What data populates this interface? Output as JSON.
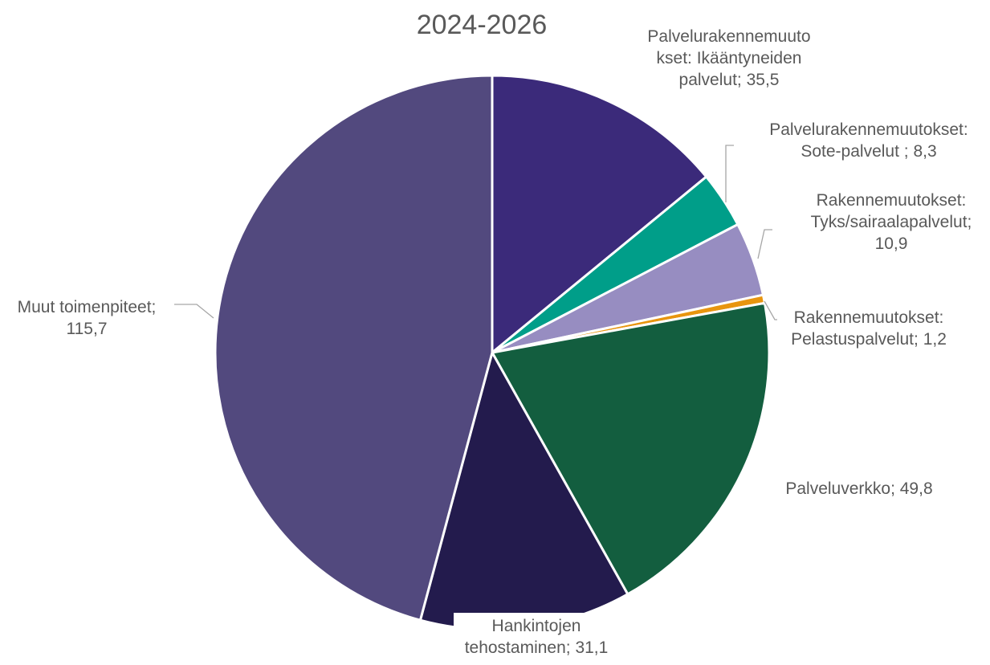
{
  "chart_data": {
    "type": "pie",
    "title": "2024-2026",
    "slices": [
      {
        "label_lines": [
          "Palvelurakennemuuto",
          "kset: Ikääntyneiden",
          "palvelut; 35,5"
        ],
        "value": 35.5,
        "color": "#3b2a7a"
      },
      {
        "label_lines": [
          "Palvelurakennemuutokset:",
          "Sote-palvelut ; 8,3"
        ],
        "value": 8.3,
        "color": "#009e89"
      },
      {
        "label_lines": [
          "Rakennemuutokset:",
          "Tyks/sairaalapalvelut;",
          "10,9"
        ],
        "value": 10.9,
        "color": "#978dc1"
      },
      {
        "label_lines": [
          "Rakennemuutokset:",
          "Pelastuspalvelut; 1,2"
        ],
        "value": 1.2,
        "color": "#e8950f"
      },
      {
        "label_lines": [
          "Palveluverkko; 49,8"
        ],
        "value": 49.8,
        "color": "#135e3f"
      },
      {
        "label_lines": [
          "Hankintojen",
          "tehostaminen; 31,1"
        ],
        "value": 31.1,
        "color": "#231b4d"
      },
      {
        "label_lines": [
          "Muut toimenpiteet;",
          "115,7"
        ],
        "value": 115.7,
        "color": "#52497e"
      }
    ],
    "legend": "none"
  }
}
